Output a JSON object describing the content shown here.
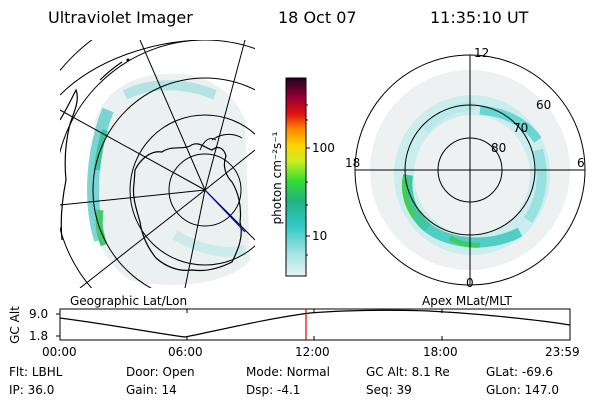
{
  "header": {
    "title": "Ultraviolet Imager",
    "date": "18 Oct 07",
    "time": "11:35:10 UT"
  },
  "colorbar": {
    "unit": "photon cm⁻²s⁻¹",
    "ticks": [
      "100",
      "10"
    ],
    "scale": "log"
  },
  "left_panel": {
    "caption": "Geographic Lat/Lon"
  },
  "right_panel": {
    "caption": "Apex MLat/MLT",
    "mlt_labels": {
      "top": "12",
      "left": "18",
      "right": "6",
      "bottom": "0"
    },
    "mlat_labels": [
      "60",
      "70",
      "80"
    ]
  },
  "timeline": {
    "axis_label": "GC Alt",
    "y_ticks": [
      "9.0",
      "1.8"
    ],
    "x_ticks": [
      "00:00",
      "06:00",
      "12:00",
      "18:00",
      "23:59"
    ],
    "marker_time": "11:35"
  },
  "info": {
    "row1": [
      {
        "key": "Flt:",
        "value": "LBHL"
      },
      {
        "key": "Door:",
        "value": "Open"
      },
      {
        "key": "Mode:",
        "value": "Normal"
      },
      {
        "key": "GC Alt:",
        "value": "8.1 Re"
      },
      {
        "key": "GLat:",
        "value": "-69.6"
      }
    ],
    "row2": [
      {
        "key": "IP:",
        "value": "36.0"
      },
      {
        "key": "Gain:",
        "value": "14"
      },
      {
        "key": "Dsp:",
        "value": "-4.1"
      },
      {
        "key": "Seq:",
        "value": "39"
      },
      {
        "key": "GLon:",
        "value": "147.0"
      }
    ]
  }
}
